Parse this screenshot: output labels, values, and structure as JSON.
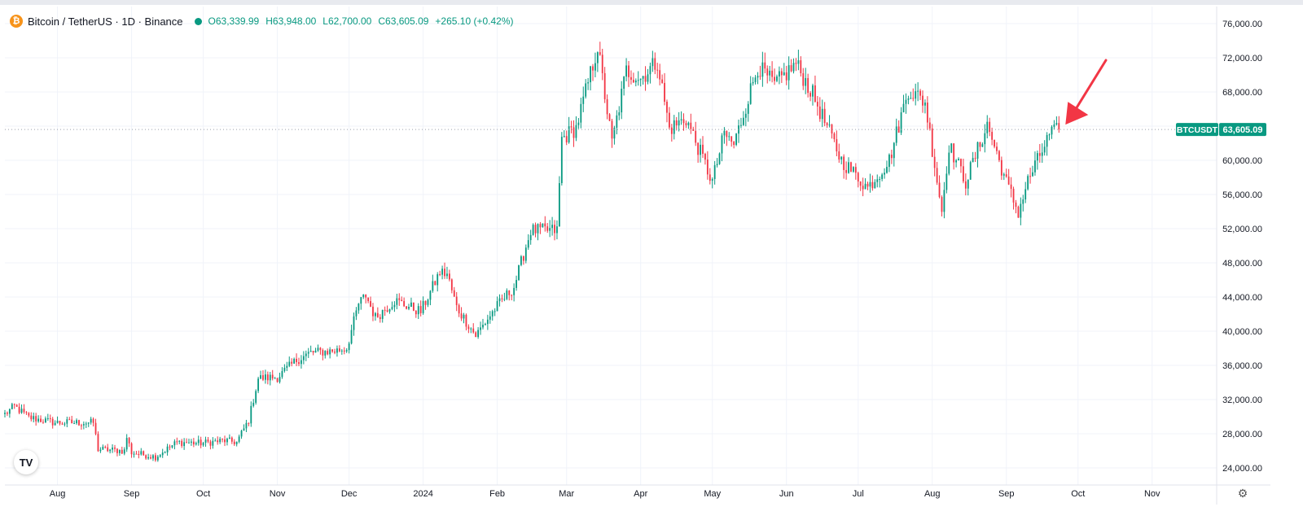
{
  "legend": {
    "symbol": "Bitcoin / TetherUS · 1D · Binance",
    "open": "O63,339.99",
    "high": "H63,948.00",
    "low": "L62,700.00",
    "close": "C63,605.09",
    "change": "+265.10 (+0.42%)",
    "coin_glyph": "₿"
  },
  "price_tag": {
    "ticker": "BTCUSDT",
    "value": "63,605.09"
  },
  "logo_text": "TV",
  "colors": {
    "up": "#089981",
    "down": "#f23645",
    "grid": "#f0f3fa",
    "arrow": "#f23645"
  },
  "chart_data": {
    "type": "candlestick",
    "title": "Bitcoin / TetherUS · 1D · Binance",
    "ylim": [
      22000,
      78000
    ],
    "yticks": [
      24000,
      28000,
      32000,
      36000,
      40000,
      44000,
      48000,
      52000,
      56000,
      60000,
      64000,
      68000,
      72000,
      76000
    ],
    "ytick_labels": [
      "24,000.00",
      "28,000.00",
      "32,000.00",
      "36,000.00",
      "40,000.00",
      "44,000.00",
      "48,000.00",
      "52,000.00",
      "56,000.00",
      "60,000.00",
      "64,000.00",
      "68,000.00",
      "72,000.00",
      "76,000.00"
    ],
    "start_date": "2023-07-10",
    "end_date": "2024-11-28",
    "xticks": [
      {
        "date": "2023-08-01",
        "label": "Aug"
      },
      {
        "date": "2023-09-01",
        "label": "Sep"
      },
      {
        "date": "2023-10-01",
        "label": "Oct"
      },
      {
        "date": "2023-11-01",
        "label": "Nov"
      },
      {
        "date": "2023-12-01",
        "label": "Dec"
      },
      {
        "date": "2024-01-01",
        "label": "2024"
      },
      {
        "date": "2024-02-01",
        "label": "Feb"
      },
      {
        "date": "2024-03-01",
        "label": "Mar"
      },
      {
        "date": "2024-04-01",
        "label": "Apr"
      },
      {
        "date": "2024-05-01",
        "label": "May"
      },
      {
        "date": "2024-06-01",
        "label": "Jun"
      },
      {
        "date": "2024-07-01",
        "label": "Jul"
      },
      {
        "date": "2024-08-01",
        "label": "Aug"
      },
      {
        "date": "2024-09-01",
        "label": "Sep"
      },
      {
        "date": "2024-10-01",
        "label": "Oct"
      },
      {
        "date": "2024-11-01",
        "label": "Nov"
      }
    ],
    "close_anchors": [
      [
        "2023-07-10",
        30300
      ],
      [
        "2023-07-14",
        31200
      ],
      [
        "2023-07-20",
        29900
      ],
      [
        "2023-07-31",
        29300
      ],
      [
        "2023-08-16",
        29300
      ],
      [
        "2023-08-18",
        26200
      ],
      [
        "2023-08-29",
        26000
      ],
      [
        "2023-08-30",
        27600
      ],
      [
        "2023-09-01",
        25800
      ],
      [
        "2023-09-11",
        25300
      ],
      [
        "2023-09-20",
        27000
      ],
      [
        "2023-09-30",
        26900
      ],
      [
        "2023-10-10",
        27200
      ],
      [
        "2023-10-15",
        27000
      ],
      [
        "2023-10-20",
        29600
      ],
      [
        "2023-10-24",
        34500
      ],
      [
        "2023-11-01",
        34600
      ],
      [
        "2023-11-09",
        36600
      ],
      [
        "2023-11-15",
        37500
      ],
      [
        "2023-11-25",
        37700
      ],
      [
        "2023-11-30",
        38000
      ],
      [
        "2023-12-05",
        43200
      ],
      [
        "2023-12-08",
        44200
      ],
      [
        "2023-12-12",
        41600
      ],
      [
        "2023-12-20",
        43600
      ],
      [
        "2023-12-31",
        42300
      ],
      [
        "2024-01-08",
        46900
      ],
      [
        "2024-01-11",
        46700
      ],
      [
        "2024-01-15",
        42800
      ],
      [
        "2024-01-23",
        39500
      ],
      [
        "2024-01-31",
        42600
      ],
      [
        "2024-02-08",
        45200
      ],
      [
        "2024-02-15",
        51800
      ],
      [
        "2024-02-26",
        51800
      ],
      [
        "2024-02-28",
        62500
      ],
      [
        "2024-03-05",
        63800
      ],
      [
        "2024-03-14",
        73300
      ],
      [
        "2024-03-20",
        62000
      ],
      [
        "2024-03-26",
        70500
      ],
      [
        "2024-04-01",
        69600
      ],
      [
        "2024-04-08",
        71600
      ],
      [
        "2024-04-13",
        63700
      ],
      [
        "2024-04-20",
        64900
      ],
      [
        "2024-05-01",
        57500
      ],
      [
        "2024-05-06",
        63100
      ],
      [
        "2024-05-10",
        61800
      ],
      [
        "2024-05-20",
        71000
      ],
      [
        "2024-05-27",
        68800
      ],
      [
        "2024-06-05",
        71300
      ],
      [
        "2024-06-12",
        67700
      ],
      [
        "2024-06-24",
        60000
      ],
      [
        "2024-07-05",
        56800
      ],
      [
        "2024-07-14",
        60000
      ],
      [
        "2024-07-22",
        68300
      ],
      [
        "2024-07-29",
        66800
      ],
      [
        "2024-08-05",
        54100
      ],
      [
        "2024-08-08",
        61800
      ],
      [
        "2024-08-15",
        57500
      ],
      [
        "2024-08-24",
        64200
      ],
      [
        "2024-09-01",
        57400
      ],
      [
        "2024-09-06",
        53900
      ],
      [
        "2024-09-10",
        57600
      ],
      [
        "2024-09-19",
        62900
      ],
      [
        "2024-09-23",
        63605
      ]
    ]
  }
}
